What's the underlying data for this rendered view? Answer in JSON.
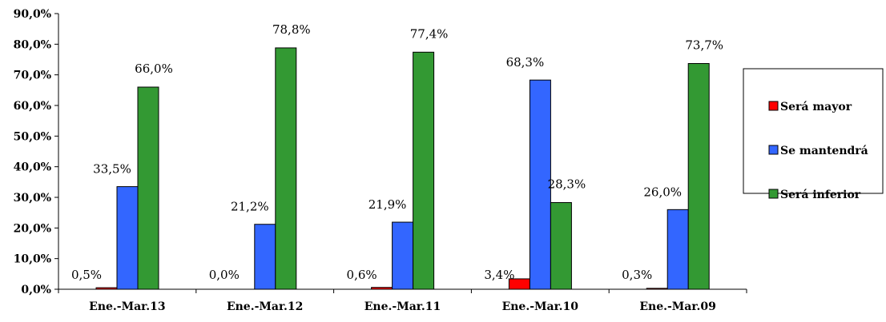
{
  "chart_data": {
    "type": "bar",
    "categories": [
      "Ene.-Mar.13",
      "Ene.-Mar.12",
      "Ene.-Mar.11",
      "Ene.-Mar.10",
      "Ene.-Mar.09"
    ],
    "series": [
      {
        "name": "Será mayor",
        "color": "#ff0000",
        "values": [
          0.5,
          0.0,
          0.6,
          3.4,
          0.3
        ],
        "labels": [
          "0,5%",
          "0,0%",
          "0,6%",
          "3,4%",
          "0,3%"
        ]
      },
      {
        "name": "Se mantendrá",
        "color": "#3366ff",
        "values": [
          33.5,
          21.2,
          21.9,
          68.3,
          26.0
        ],
        "labels": [
          "33,5%",
          "21,2%",
          "21,9%",
          "68,3%",
          "26,0%"
        ]
      },
      {
        "name": "Será inferior",
        "color": "#339933",
        "values": [
          66.0,
          78.8,
          77.4,
          28.3,
          73.7
        ],
        "labels": [
          "66,0%",
          "78,8%",
          "77,4%",
          "28,3%",
          "73,7%"
        ]
      }
    ],
    "yticks": [
      0,
      10,
      20,
      30,
      40,
      50,
      60,
      70,
      80,
      90
    ],
    "ytick_labels": [
      "0,0%",
      "10,0%",
      "20,0%",
      "30,0%",
      "40,0%",
      "50,0%",
      "60,0%",
      "70,0%",
      "80,0%",
      "90,0%"
    ],
    "ylim": [
      0,
      90
    ],
    "legend_position": "right",
    "grid": false
  }
}
